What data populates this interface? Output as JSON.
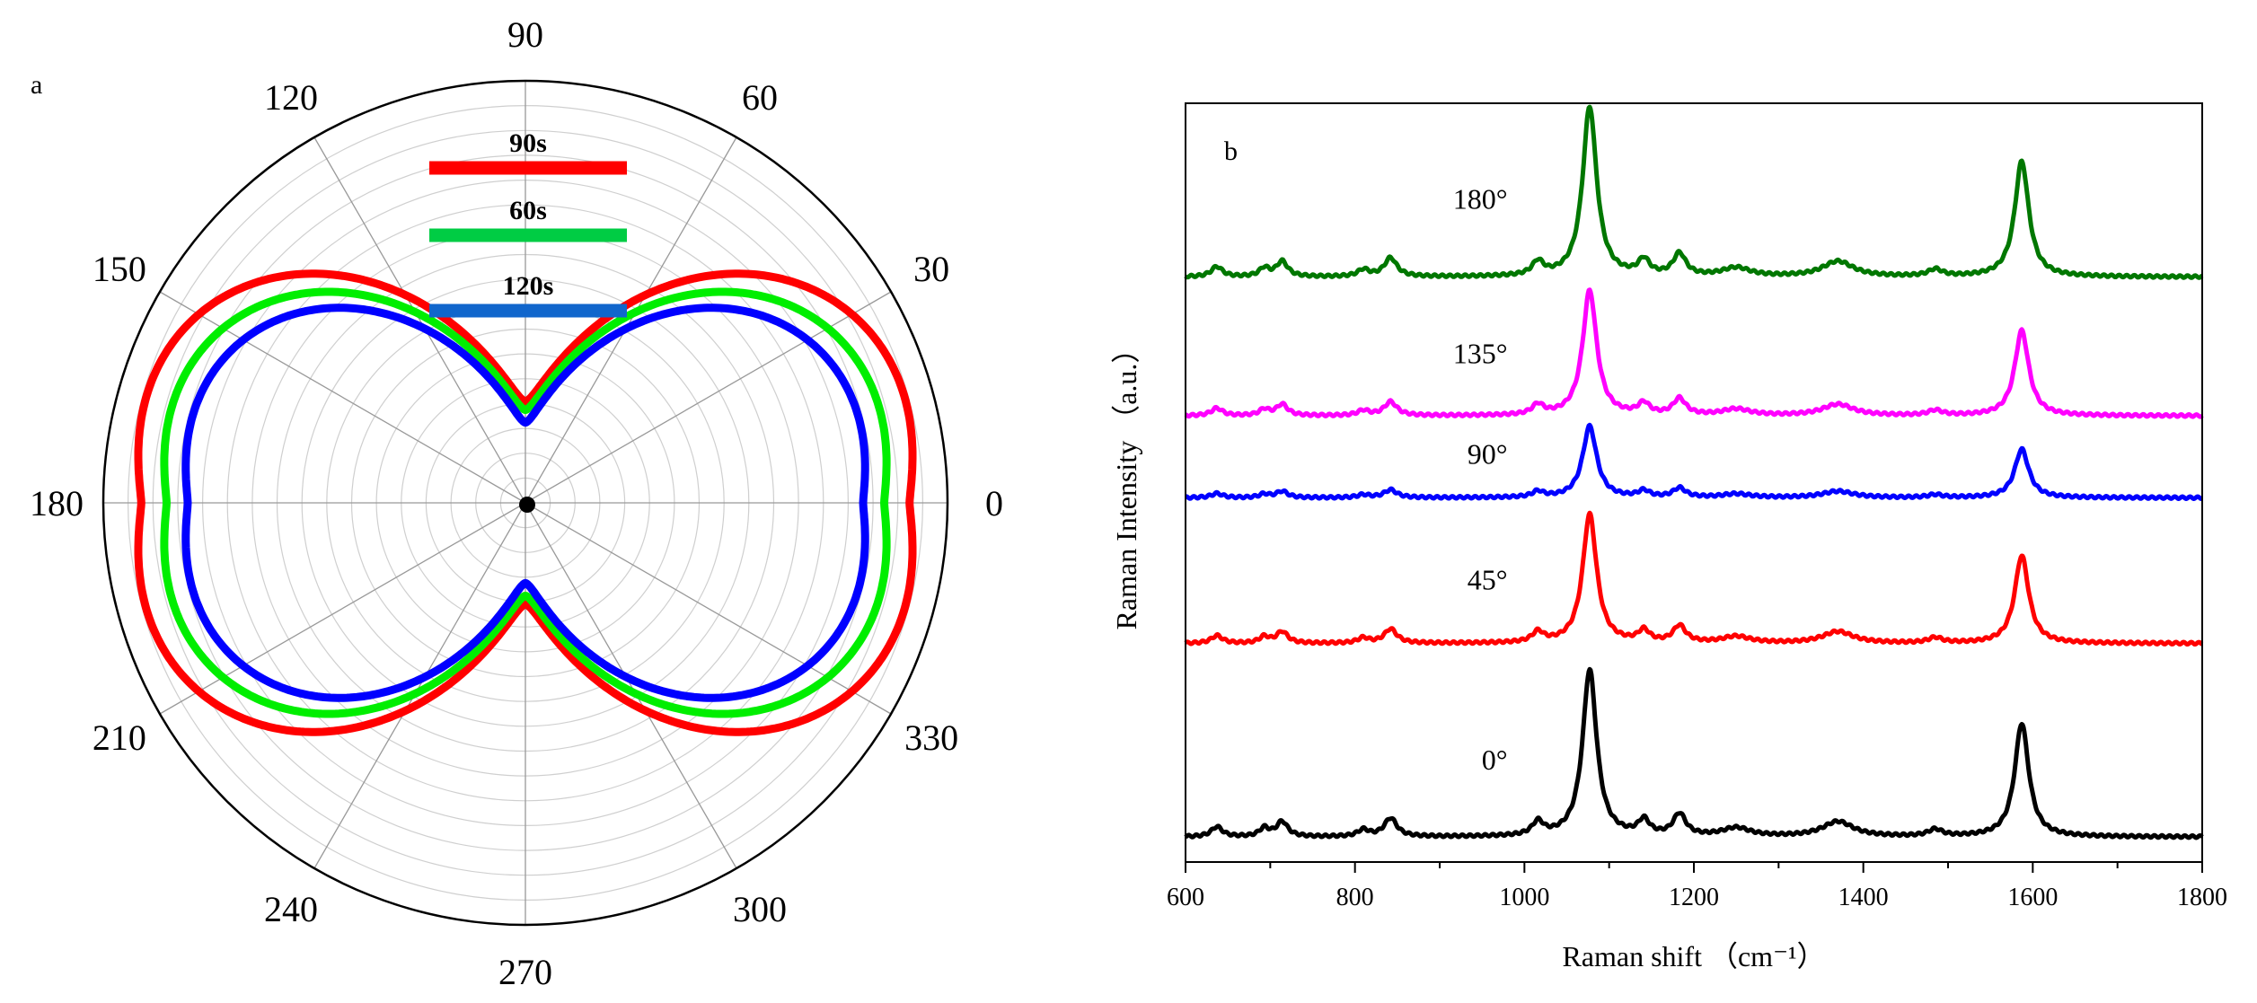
{
  "chart_data": [
    {
      "type": "polar-line",
      "panel_label": "a",
      "angular_ticks": [
        "0",
        "30",
        "60",
        "90",
        "120",
        "150",
        "180",
        "210",
        "240",
        "270",
        "300",
        "330"
      ],
      "radial_range": [
        0,
        1
      ],
      "grid": true,
      "legend_position": "top-center",
      "series": [
        {
          "name": "90s",
          "color": "#ff0000",
          "width_param": 0.91,
          "depth_param": 0.24,
          "scale": 0.98
        },
        {
          "name": "60s",
          "color": "#00ee00",
          "width_param": 0.85,
          "depth_param": 0.22,
          "scale": 0.87
        },
        {
          "name": "120s",
          "color": "#0000ff",
          "width_param": 0.8,
          "depth_param": 0.19,
          "scale": 0.8
        }
      ],
      "legend": [
        {
          "label": "90s",
          "color": "#ff0000"
        },
        {
          "label": "60s",
          "color": "#00cc44"
        },
        {
          "label": "120s",
          "color": "#1166cc"
        }
      ]
    },
    {
      "type": "line",
      "panel_label": "b",
      "xlabel": "Raman shift （cm⁻¹）",
      "ylabel": "Raman Intensity （a.u.）",
      "xlim": [
        600,
        1800
      ],
      "ylim": [
        0,
        1
      ],
      "xticks": [
        "600",
        "800",
        "1000",
        "1200",
        "1400",
        "1600",
        "1800"
      ],
      "peaks_cm1": [
        {
          "center": 637,
          "rel": 0.06,
          "width": 8
        },
        {
          "center": 693,
          "rel": 0.05,
          "width": 7
        },
        {
          "center": 714,
          "rel": 0.09,
          "width": 8
        },
        {
          "center": 810,
          "rel": 0.04,
          "width": 8
        },
        {
          "center": 842,
          "rel": 0.11,
          "width": 9
        },
        {
          "center": 1016,
          "rel": 0.08,
          "width": 8
        },
        {
          "center": 1077,
          "rel": 1.0,
          "width": 10
        },
        {
          "center": 1141,
          "rel": 0.09,
          "width": 8
        },
        {
          "center": 1183,
          "rel": 0.13,
          "width": 9
        },
        {
          "center": 1250,
          "rel": 0.05,
          "width": 20
        },
        {
          "center": 1370,
          "rel": 0.09,
          "width": 22
        },
        {
          "center": 1485,
          "rel": 0.04,
          "width": 10
        },
        {
          "center": 1587,
          "rel": 0.68,
          "width": 10
        }
      ],
      "series": [
        {
          "name": "0°",
          "label": "0°",
          "color": "#000000",
          "baseline": 0.033,
          "amplitude": 0.22
        },
        {
          "name": "45°",
          "label": "45°",
          "color": "#ff0000",
          "baseline": 0.288,
          "amplitude": 0.17
        },
        {
          "name": "90°",
          "label": "90°",
          "color": "#0000ff",
          "baseline": 0.48,
          "amplitude": 0.094
        },
        {
          "name": "135°",
          "label": "135°",
          "color": "#ff00ff",
          "baseline": 0.588,
          "amplitude": 0.165
        },
        {
          "name": "180°",
          "label": "180°",
          "color": "#007700",
          "baseline": 0.771,
          "amplitude": 0.224
        }
      ]
    }
  ]
}
